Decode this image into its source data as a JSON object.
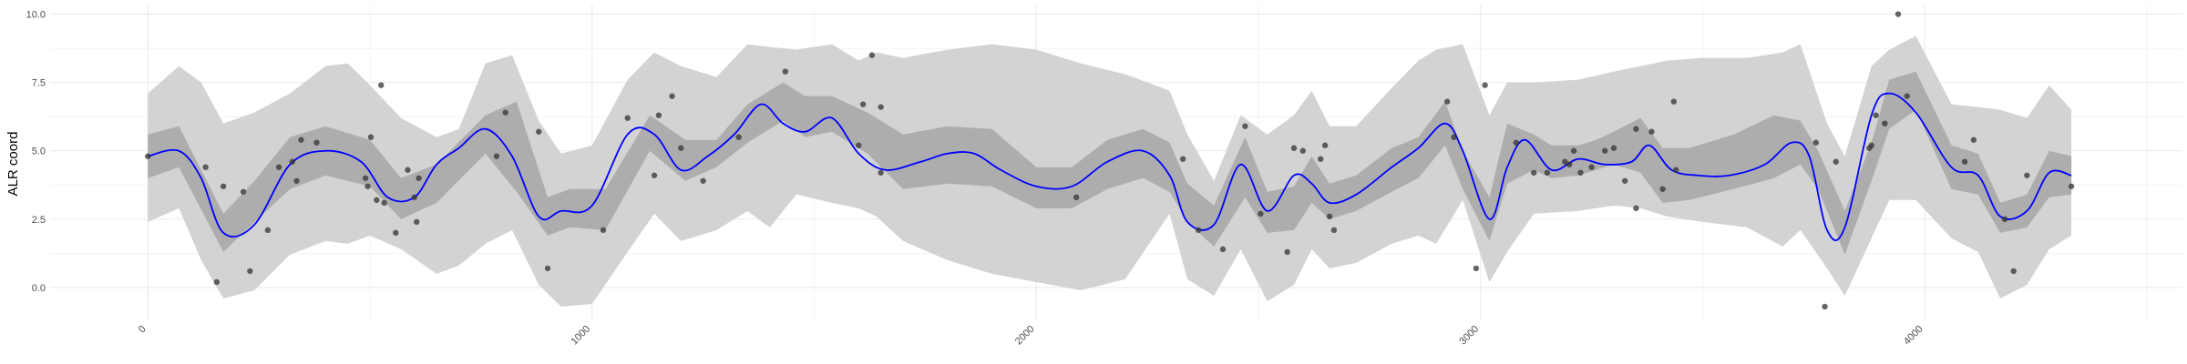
{
  "chart_data": {
    "type": "line",
    "xlabel": "",
    "ylabel": "ALR coord",
    "xlim": [
      -220,
      4580
    ],
    "ylim": [
      -1.2,
      10.35
    ],
    "x_ticks": [
      0,
      1000,
      2000,
      3000,
      4000
    ],
    "x_tick_labels": [
      "0",
      "1000",
      "2000",
      "3000",
      "4000"
    ],
    "y_ticks": [
      0.0,
      2.5,
      5.0,
      7.5,
      10.0
    ],
    "y_tick_labels": [
      "0.0",
      "2.5",
      "5.0",
      "7.5",
      "10.0"
    ],
    "grid": true,
    "legend": "none",
    "colors": {
      "mean_line": "#0000ff",
      "inner_band": "#adadad",
      "outer_band": "#d3d3d3",
      "points": "#333333",
      "grid": "#ebebeb"
    },
    "series": [
      {
        "type": "band",
        "x": [
          0,
          70,
          170,
          240,
          320,
          400,
          500,
          570,
          650,
          760,
          830,
          900,
          950,
          1030,
          1130,
          1210,
          1280,
          1350,
          1430,
          1480,
          1540,
          1620,
          1700,
          1800,
          1900,
          2000,
          2080,
          2160,
          2240,
          2300,
          2340,
          2400,
          2470,
          2520,
          2580,
          2620,
          2660,
          2720,
          2800,
          2860,
          2920,
          2960,
          3020,
          3060,
          3120,
          3160,
          3220,
          3260,
          3300,
          3360,
          3410,
          3470,
          3570,
          3660,
          3720,
          3760,
          3820,
          3880,
          3920,
          3980,
          4060,
          4120,
          4170,
          4230,
          4280,
          4330
        ],
        "lower": [
          4.0,
          4.4,
          1.3,
          2.4,
          3.6,
          4.1,
          3.7,
          2.5,
          3.1,
          4.9,
          3.5,
          1.9,
          2.2,
          2.1,
          5.0,
          3.9,
          4.4,
          5.3,
          6.1,
          5.5,
          5.7,
          4.9,
          3.6,
          3.8,
          3.7,
          2.9,
          2.9,
          3.6,
          4.0,
          3.5,
          2.4,
          1.5,
          3.3,
          2.0,
          2.1,
          3.1,
          2.5,
          2.8,
          3.5,
          4.0,
          5.2,
          3.6,
          1.7,
          3.8,
          4.3,
          4.0,
          4.1,
          4.3,
          4.5,
          4.2,
          3.1,
          3.2,
          3.6,
          4.0,
          4.5,
          3.6,
          1.2,
          3.9,
          5.8,
          6.5,
          3.6,
          3.4,
          2.0,
          2.2,
          3.3,
          3.4
        ],
        "upper": [
          5.6,
          5.9,
          2.7,
          3.9,
          5.5,
          5.9,
          5.4,
          4.0,
          4.5,
          6.3,
          6.8,
          3.3,
          3.6,
          3.6,
          6.3,
          5.4,
          5.4,
          6.7,
          7.5,
          7.0,
          7.0,
          6.4,
          5.6,
          5.9,
          5.8,
          4.4,
          4.4,
          5.4,
          5.8,
          5.3,
          3.8,
          3.0,
          5.5,
          3.5,
          3.7,
          4.8,
          3.8,
          4.1,
          5.1,
          5.5,
          6.8,
          5.0,
          3.3,
          6.0,
          5.6,
          5.2,
          5.2,
          5.4,
          5.7,
          6.2,
          5.1,
          5.1,
          5.6,
          6.3,
          6.1,
          5.0,
          2.8,
          5.3,
          7.6,
          7.9,
          5.2,
          4.9,
          3.1,
          3.4,
          5.0,
          4.8
        ]
      },
      {
        "type": "band",
        "x": [
          0,
          70,
          120,
          170,
          240,
          320,
          400,
          450,
          500,
          570,
          650,
          700,
          760,
          820,
          880,
          930,
          1000,
          1080,
          1140,
          1200,
          1280,
          1350,
          1400,
          1460,
          1540,
          1600,
          1640,
          1700,
          1800,
          1900,
          2000,
          2100,
          2200,
          2300,
          2340,
          2400,
          2460,
          2520,
          2580,
          2620,
          2660,
          2720,
          2800,
          2860,
          2900,
          2960,
          3020,
          3060,
          3120,
          3220,
          3300,
          3360,
          3420,
          3500,
          3600,
          3680,
          3720,
          3780,
          3820,
          3880,
          3920,
          3980,
          4060,
          4120,
          4170,
          4230,
          4280,
          4330
        ],
        "lower": [
          2.4,
          2.9,
          1.0,
          -0.4,
          -0.1,
          1.2,
          1.7,
          1.6,
          1.9,
          1.4,
          0.5,
          0.8,
          1.6,
          2.1,
          0.1,
          -0.7,
          -0.6,
          1.3,
          2.7,
          1.7,
          2.1,
          2.8,
          2.2,
          3.4,
          3.1,
          2.9,
          2.6,
          1.7,
          1.0,
          0.5,
          0.2,
          -0.1,
          0.3,
          2.7,
          0.3,
          -0.3,
          1.4,
          -0.5,
          0.1,
          1.4,
          0.7,
          0.9,
          1.6,
          1.9,
          1.6,
          3.2,
          0.2,
          1.3,
          2.7,
          2.8,
          3.0,
          2.9,
          2.6,
          2.4,
          2.2,
          1.5,
          2.1,
          0.7,
          -0.3,
          1.8,
          3.2,
          3.2,
          1.8,
          1.3,
          -0.4,
          0.1,
          1.4,
          1.9
        ],
        "upper": [
          7.1,
          8.1,
          7.5,
          6.0,
          6.4,
          7.1,
          8.1,
          8.2,
          7.4,
          6.2,
          5.5,
          5.8,
          8.2,
          8.5,
          6.1,
          4.9,
          5.2,
          7.6,
          8.6,
          8.1,
          7.7,
          8.9,
          8.8,
          8.7,
          8.9,
          8.3,
          8.6,
          8.4,
          8.7,
          8.9,
          8.7,
          8.2,
          7.8,
          7.2,
          5.6,
          3.9,
          6.3,
          5.6,
          6.3,
          7.2,
          5.9,
          5.9,
          7.3,
          8.3,
          8.7,
          8.9,
          6.3,
          7.5,
          7.5,
          7.6,
          7.9,
          8.1,
          8.3,
          8.4,
          8.4,
          8.6,
          8.9,
          6.0,
          4.8,
          8.1,
          8.7,
          9.2,
          6.7,
          6.6,
          6.5,
          6.2,
          7.4,
          6.5
        ]
      },
      {
        "type": "line",
        "x": [
          0,
          70,
          120,
          170,
          240,
          320,
          400,
          480,
          540,
          600,
          650,
          700,
          760,
          820,
          880,
          930,
          1000,
          1080,
          1140,
          1200,
          1260,
          1320,
          1380,
          1430,
          1480,
          1540,
          1600,
          1660,
          1740,
          1800,
          1860,
          1920,
          2000,
          2080,
          2160,
          2240,
          2300,
          2340,
          2400,
          2460,
          2520,
          2580,
          2620,
          2660,
          2720,
          2800,
          2860,
          2920,
          2960,
          3020,
          3060,
          3100,
          3160,
          3220,
          3280,
          3340,
          3380,
          3430,
          3490,
          3560,
          3640,
          3700,
          3740,
          3780,
          3820,
          3880,
          3920,
          3980,
          4060,
          4120,
          4170,
          4230,
          4280,
          4330
        ],
        "y": [
          4.8,
          5.0,
          4.0,
          2.0,
          2.3,
          4.5,
          5.0,
          4.6,
          3.3,
          3.3,
          4.5,
          5.1,
          5.8,
          4.8,
          2.6,
          2.8,
          3.0,
          5.6,
          5.6,
          4.3,
          4.8,
          5.6,
          6.7,
          6.0,
          5.7,
          6.2,
          4.9,
          4.3,
          4.6,
          4.9,
          4.9,
          4.3,
          3.7,
          3.7,
          4.6,
          5.0,
          4.1,
          2.4,
          2.3,
          4.5,
          2.8,
          4.1,
          3.8,
          3.1,
          3.4,
          4.4,
          5.1,
          6.0,
          5.0,
          2.5,
          4.4,
          5.4,
          4.3,
          4.7,
          4.5,
          4.6,
          5.2,
          4.3,
          4.1,
          4.1,
          4.5,
          5.3,
          4.8,
          2.1,
          2.2,
          6.3,
          7.1,
          6.4,
          4.4,
          4.1,
          2.6,
          2.8,
          4.2,
          4.1
        ]
      },
      {
        "type": "scatter",
        "x": [
          0,
          130,
          155,
          170,
          215,
          230,
          270,
          295,
          325,
          335,
          345,
          380,
          490,
          495,
          502,
          515,
          525,
          532,
          558,
          585,
          600,
          605,
          610,
          785,
          805,
          880,
          900,
          1025,
          1080,
          1140,
          1150,
          1180,
          1200,
          1250,
          1330,
          1435,
          1600,
          1610,
          1630,
          1650,
          1650,
          2090,
          2330,
          2365,
          2420,
          2470,
          2505,
          2565,
          2580,
          2600,
          2640,
          2650,
          2660,
          2670,
          2925,
          2940,
          2990,
          3010,
          3080,
          3120,
          3150,
          3190,
          3200,
          3210,
          3225,
          3250,
          3280,
          3300,
          3325,
          3350,
          3350,
          3385,
          3410,
          3435,
          3440,
          3755,
          3775,
          3800,
          3875,
          3880,
          3890,
          3910,
          3940,
          3960,
          4090,
          4110,
          4180,
          4200,
          4230,
          4330
        ],
        "y": [
          4.8,
          4.4,
          0.2,
          3.7,
          3.5,
          0.6,
          2.1,
          4.4,
          4.6,
          3.9,
          5.4,
          5.3,
          4.0,
          3.7,
          5.5,
          3.2,
          7.4,
          3.1,
          2.0,
          4.3,
          3.3,
          2.4,
          4.0,
          4.8,
          6.4,
          5.7,
          0.7,
          2.1,
          6.2,
          4.1,
          6.3,
          7.0,
          5.1,
          3.9,
          5.5,
          7.9,
          5.2,
          6.7,
          8.5,
          6.6,
          4.2,
          3.3,
          4.7,
          2.1,
          1.4,
          5.9,
          2.7,
          1.3,
          5.1,
          5.0,
          4.7,
          5.2,
          2.6,
          2.1,
          6.8,
          5.5,
          0.7,
          7.4,
          5.3,
          4.2,
          4.2,
          4.6,
          4.5,
          5.0,
          4.2,
          4.4,
          5.0,
          5.1,
          3.9,
          5.8,
          2.9,
          5.7,
          3.6,
          6.8,
          4.3,
          5.3,
          -0.7,
          4.6,
          5.1,
          5.2,
          6.3,
          6.0,
          10.0,
          7.0,
          4.6,
          5.4,
          2.5,
          0.6,
          4.1,
          3.7
        ]
      }
    ]
  }
}
